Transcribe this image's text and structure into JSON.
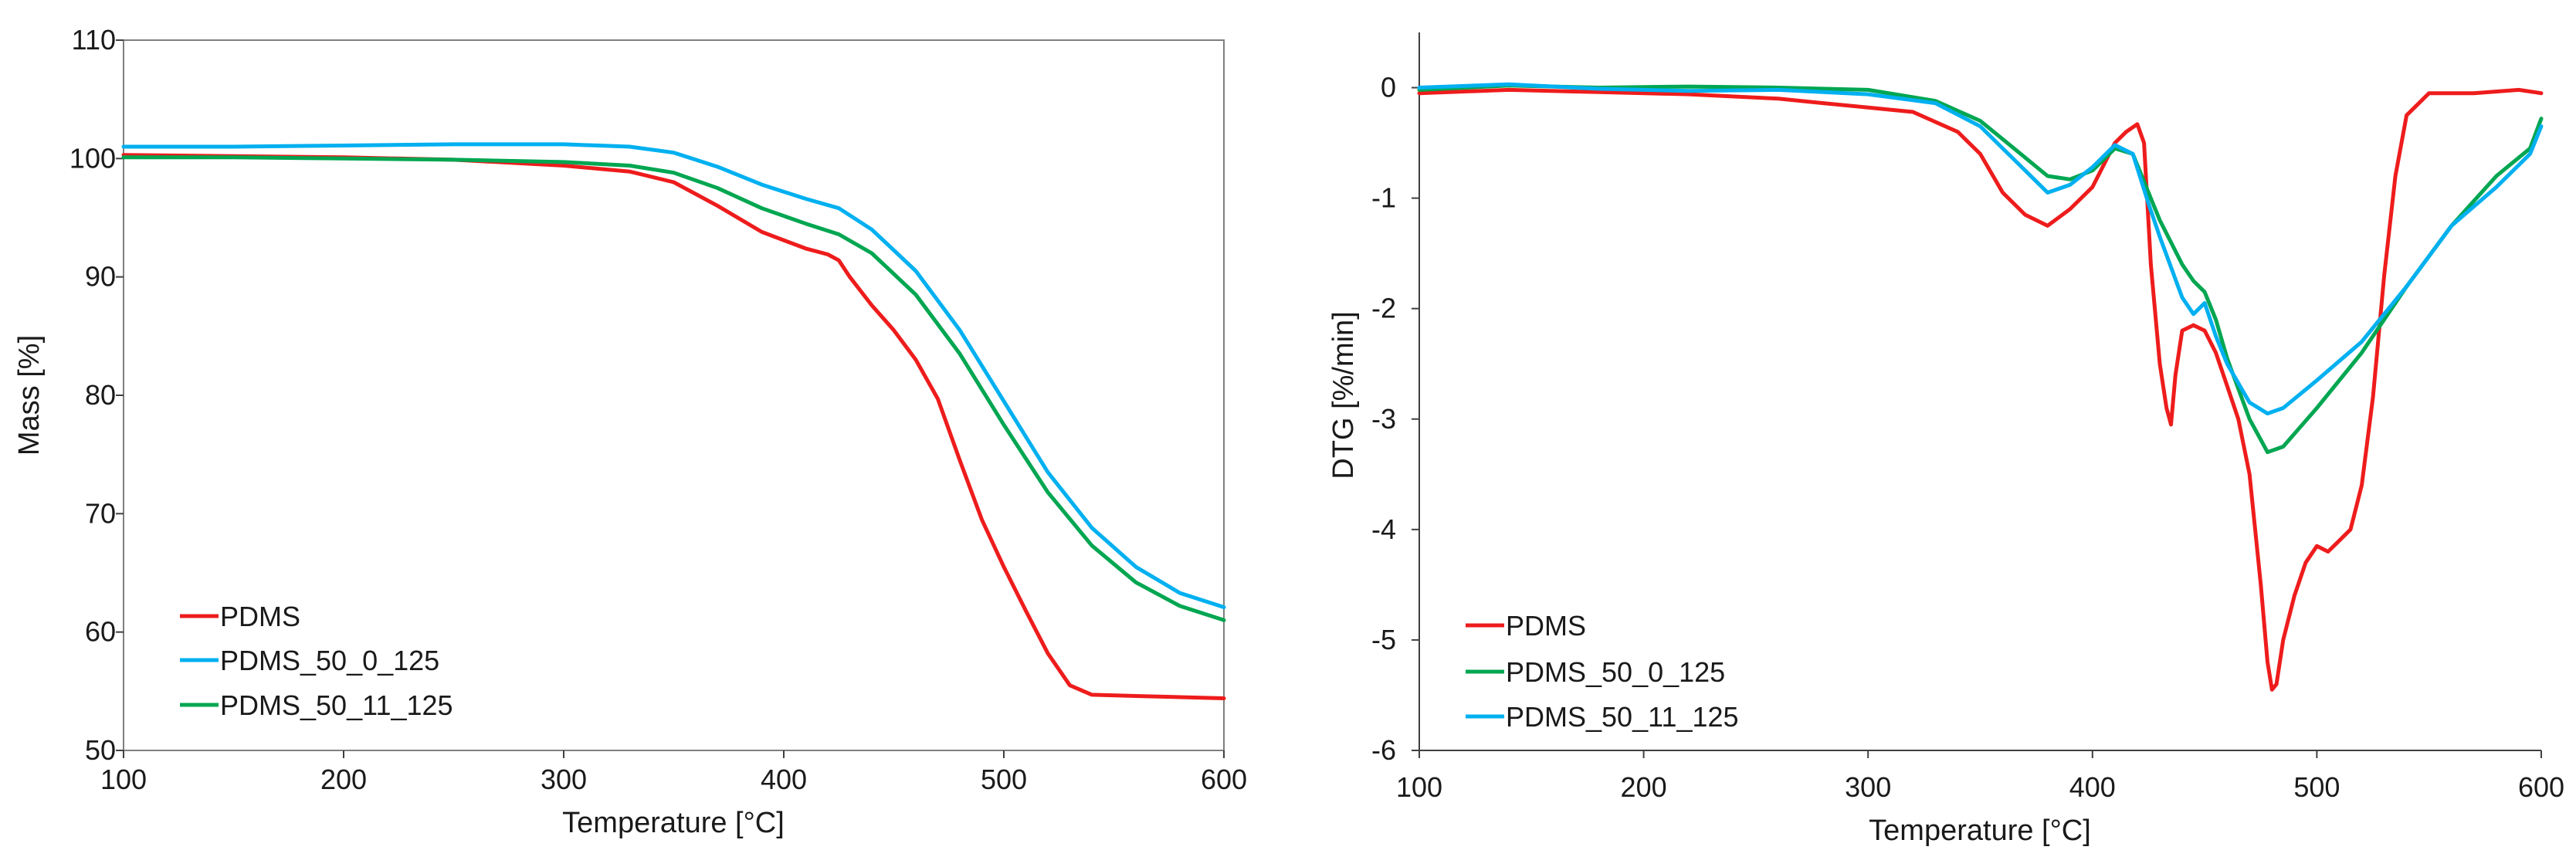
{
  "chart_data": [
    {
      "type": "line",
      "title": "",
      "xlabel": "Temperature [°C]",
      "ylabel": "Mass [%]",
      "xlim": [
        100,
        600
      ],
      "ylim": [
        50,
        110
      ],
      "xticks": [
        100,
        200,
        300,
        400,
        500,
        600
      ],
      "yticks": [
        50,
        60,
        70,
        80,
        90,
        100,
        110
      ],
      "grid": false,
      "legend_position": "bottom-left",
      "series": [
        {
          "name": "PDMS",
          "color": "#ee1c1c",
          "points": [
            [
              100,
              100.3
            ],
            [
              150,
              100.2
            ],
            [
              200,
              100.1
            ],
            [
              250,
              99.9
            ],
            [
              300,
              99.4
            ],
            [
              330,
              98.9
            ],
            [
              350,
              98.0
            ],
            [
              370,
              96.0
            ],
            [
              390,
              93.8
            ],
            [
              410,
              92.4
            ],
            [
              420,
              91.9
            ],
            [
              425,
              91.4
            ],
            [
              430,
              90.0
            ],
            [
              440,
              87.6
            ],
            [
              450,
              85.5
            ],
            [
              460,
              83.0
            ],
            [
              470,
              79.7
            ],
            [
              480,
              74.5
            ],
            [
              490,
              69.5
            ],
            [
              500,
              65.5
            ],
            [
              510,
              61.8
            ],
            [
              520,
              58.2
            ],
            [
              530,
              55.5
            ],
            [
              540,
              54.7
            ],
            [
              560,
              54.6
            ],
            [
              600,
              54.4
            ]
          ]
        },
        {
          "name": "PDMS_50_0_125",
          "color": "#00b0f0",
          "points": [
            [
              100,
              101.0
            ],
            [
              150,
              101.0
            ],
            [
              200,
              101.1
            ],
            [
              250,
              101.2
            ],
            [
              300,
              101.2
            ],
            [
              330,
              101.0
            ],
            [
              350,
              100.5
            ],
            [
              370,
              99.3
            ],
            [
              390,
              97.8
            ],
            [
              410,
              96.6
            ],
            [
              425,
              95.8
            ],
            [
              440,
              94.0
            ],
            [
              460,
              90.5
            ],
            [
              480,
              85.5
            ],
            [
              500,
              79.5
            ],
            [
              520,
              73.5
            ],
            [
              540,
              68.8
            ],
            [
              560,
              65.5
            ],
            [
              580,
              63.3
            ],
            [
              600,
              62.1
            ]
          ]
        },
        {
          "name": "PDMS_50_11_125",
          "color": "#00a651",
          "points": [
            [
              100,
              100.1
            ],
            [
              150,
              100.1
            ],
            [
              200,
              100.0
            ],
            [
              250,
              99.9
            ],
            [
              300,
              99.7
            ],
            [
              330,
              99.4
            ],
            [
              350,
              98.8
            ],
            [
              370,
              97.5
            ],
            [
              390,
              95.8
            ],
            [
              410,
              94.5
            ],
            [
              425,
              93.6
            ],
            [
              440,
              92.0
            ],
            [
              460,
              88.5
            ],
            [
              480,
              83.5
            ],
            [
              500,
              77.5
            ],
            [
              520,
              71.8
            ],
            [
              540,
              67.3
            ],
            [
              560,
              64.2
            ],
            [
              580,
              62.2
            ],
            [
              600,
              61.0
            ]
          ]
        }
      ]
    },
    {
      "type": "line",
      "title": "",
      "xlabel": "Temperature [°C]",
      "ylabel": "DTG [%/min]",
      "xlim": [
        100,
        600
      ],
      "ylim": [
        -6,
        0.5
      ],
      "xticks": [
        100,
        200,
        300,
        400,
        500,
        600
      ],
      "yticks": [
        -6,
        -5,
        -4,
        -3,
        -2,
        -1,
        0
      ],
      "grid": false,
      "legend_position": "bottom-left",
      "series": [
        {
          "name": "PDMS",
          "color": "#ee1c1c",
          "points": [
            [
              100,
              -0.05
            ],
            [
              140,
              -0.02
            ],
            [
              180,
              -0.04
            ],
            [
              220,
              -0.06
            ],
            [
              260,
              -0.1
            ],
            [
              280,
              -0.14
            ],
            [
              300,
              -0.18
            ],
            [
              320,
              -0.22
            ],
            [
              340,
              -0.4
            ],
            [
              350,
              -0.6
            ],
            [
              360,
              -0.95
            ],
            [
              370,
              -1.15
            ],
            [
              380,
              -1.25
            ],
            [
              390,
              -1.1
            ],
            [
              400,
              -0.9
            ],
            [
              405,
              -0.7
            ],
            [
              410,
              -0.5
            ],
            [
              415,
              -0.4
            ],
            [
              420,
              -0.33
            ],
            [
              423,
              -0.5
            ],
            [
              426,
              -1.6
            ],
            [
              430,
              -2.5
            ],
            [
              433,
              -2.9
            ],
            [
              435,
              -3.05
            ],
            [
              437,
              -2.6
            ],
            [
              440,
              -2.2
            ],
            [
              445,
              -2.15
            ],
            [
              450,
              -2.2
            ],
            [
              455,
              -2.4
            ],
            [
              460,
              -2.7
            ],
            [
              465,
              -3.0
            ],
            [
              470,
              -3.5
            ],
            [
              475,
              -4.5
            ],
            [
              478,
              -5.2
            ],
            [
              480,
              -5.45
            ],
            [
              482,
              -5.4
            ],
            [
              485,
              -5.0
            ],
            [
              490,
              -4.6
            ],
            [
              495,
              -4.3
            ],
            [
              500,
              -4.15
            ],
            [
              505,
              -4.2
            ],
            [
              510,
              -4.1
            ],
            [
              515,
              -4.0
            ],
            [
              520,
              -3.6
            ],
            [
              525,
              -2.8
            ],
            [
              530,
              -1.7
            ],
            [
              535,
              -0.8
            ],
            [
              540,
              -0.25
            ],
            [
              550,
              -0.05
            ],
            [
              570,
              -0.05
            ],
            [
              590,
              -0.02
            ],
            [
              600,
              -0.05
            ]
          ]
        },
        {
          "name": "PDMS_50_0_125",
          "color": "#00a651",
          "points": [
            [
              100,
              -0.02
            ],
            [
              140,
              0.02
            ],
            [
              180,
              0.0
            ],
            [
              220,
              0.01
            ],
            [
              260,
              0.0
            ],
            [
              300,
              -0.02
            ],
            [
              330,
              -0.12
            ],
            [
              350,
              -0.3
            ],
            [
              365,
              -0.55
            ],
            [
              380,
              -0.8
            ],
            [
              390,
              -0.83
            ],
            [
              400,
              -0.75
            ],
            [
              410,
              -0.55
            ],
            [
              418,
              -0.6
            ],
            [
              425,
              -0.95
            ],
            [
              430,
              -1.2
            ],
            [
              440,
              -1.6
            ],
            [
              445,
              -1.75
            ],
            [
              450,
              -1.85
            ],
            [
              455,
              -2.1
            ],
            [
              460,
              -2.45
            ],
            [
              470,
              -3.0
            ],
            [
              478,
              -3.3
            ],
            [
              485,
              -3.25
            ],
            [
              500,
              -2.9
            ],
            [
              520,
              -2.4
            ],
            [
              540,
              -1.8
            ],
            [
              560,
              -1.25
            ],
            [
              580,
              -0.8
            ],
            [
              595,
              -0.55
            ],
            [
              600,
              -0.28
            ]
          ]
        },
        {
          "name": "PDMS_50_11_125",
          "color": "#00b0f0",
          "points": [
            [
              100,
              0.0
            ],
            [
              140,
              0.03
            ],
            [
              180,
              -0.01
            ],
            [
              220,
              -0.03
            ],
            [
              260,
              -0.02
            ],
            [
              300,
              -0.06
            ],
            [
              330,
              -0.14
            ],
            [
              350,
              -0.35
            ],
            [
              365,
              -0.65
            ],
            [
              375,
              -0.85
            ],
            [
              380,
              -0.95
            ],
            [
              390,
              -0.88
            ],
            [
              400,
              -0.72
            ],
            [
              410,
              -0.52
            ],
            [
              418,
              -0.6
            ],
            [
              425,
              -1.05
            ],
            [
              430,
              -1.35
            ],
            [
              440,
              -1.9
            ],
            [
              445,
              -2.05
            ],
            [
              450,
              -1.95
            ],
            [
              455,
              -2.25
            ],
            [
              460,
              -2.5
            ],
            [
              470,
              -2.85
            ],
            [
              478,
              -2.95
            ],
            [
              485,
              -2.9
            ],
            [
              500,
              -2.65
            ],
            [
              520,
              -2.3
            ],
            [
              540,
              -1.8
            ],
            [
              560,
              -1.25
            ],
            [
              580,
              -0.9
            ],
            [
              595,
              -0.6
            ],
            [
              600,
              -0.35
            ]
          ]
        }
      ]
    }
  ]
}
